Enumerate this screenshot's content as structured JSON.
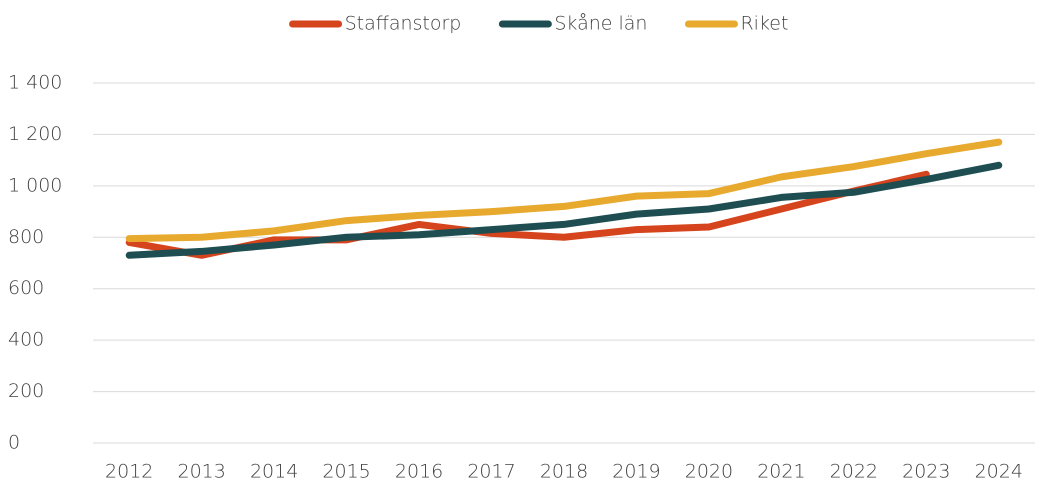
{
  "chart_data": {
    "type": "line",
    "categories": [
      "2012",
      "2013",
      "2014",
      "2015",
      "2016",
      "2017",
      "2018",
      "2019",
      "2020",
      "2021",
      "2022",
      "2023",
      "2024"
    ],
    "series": [
      {
        "name": "Staffanstorp",
        "color": "#d5441c",
        "values": [
          780,
          730,
          790,
          790,
          850,
          815,
          800,
          830,
          840,
          910,
          980,
          1045,
          null
        ]
      },
      {
        "name": "Skåne län",
        "color": "#1f4e52",
        "values": [
          730,
          745,
          770,
          800,
          810,
          830,
          850,
          890,
          910,
          955,
          975,
          1025,
          1080
        ]
      },
      {
        "name": "Riket",
        "color": "#e8a92f",
        "values": [
          795,
          800,
          825,
          865,
          885,
          900,
          920,
          960,
          970,
          1035,
          1075,
          1125,
          1170
        ]
      }
    ],
    "ylim": [
      0,
      1400
    ],
    "yticks": [
      0,
      200,
      400,
      600,
      800,
      {
        "value": 1000,
        "label": "1 000"
      },
      {
        "value": 1200,
        "label": "1 200"
      },
      {
        "value": 1400,
        "label": "1 400"
      }
    ],
    "grid": true,
    "legend": "top"
  }
}
